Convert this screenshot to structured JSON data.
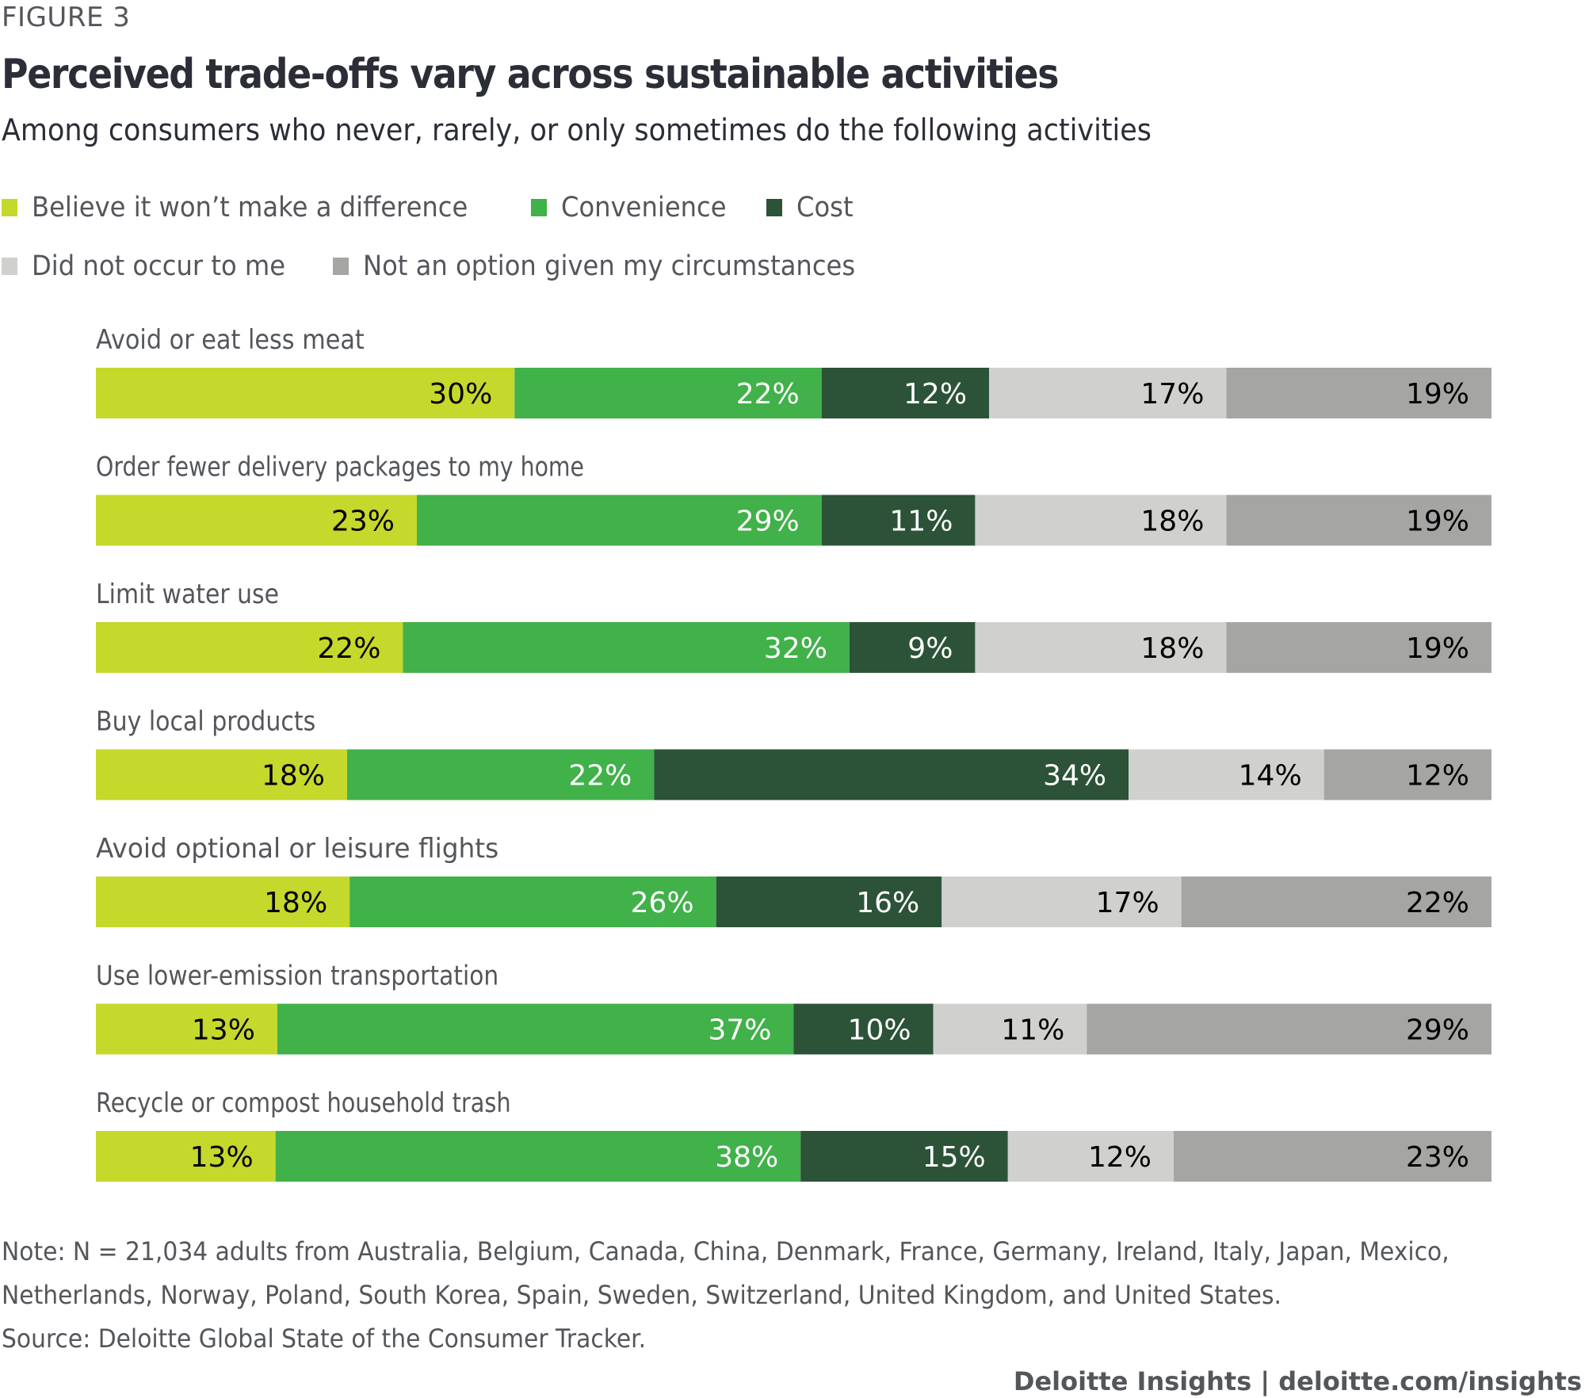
{
  "figure_label": "FIGURE 3",
  "title": "Perceived trade-offs vary across sustainable activities",
  "subtitle": "Among consumers who never, rarely, or only sometimes do the following activities",
  "legend": [
    {
      "label": "Believe it won’t make a difference",
      "color": "#c5d82c",
      "icon": "square-swatch"
    },
    {
      "label": "Convenience",
      "color": "#41b14a",
      "icon": "square-swatch"
    },
    {
      "label": "Cost",
      "color": "#2c5337",
      "icon": "square-swatch"
    },
    {
      "label": "Did not occur to me",
      "color": "#d0d0ce",
      "icon": "square-swatch"
    },
    {
      "label": "Not an option given my circumstances",
      "color": "#a5a5a4",
      "icon": "square-swatch"
    }
  ],
  "chart_data": {
    "type": "bar",
    "orientation": "horizontal",
    "stacked": true,
    "normalized": "percent",
    "title": "Perceived trade-offs vary across sustainable activities",
    "subtitle": "Among consumers who never, rarely, or only sometimes do the following activities",
    "xlabel": "",
    "ylabel": "",
    "xlim": [
      0,
      100
    ],
    "grid": false,
    "legend_position": "top-left",
    "categories": [
      "Avoid or eat less meat",
      "Order fewer delivery packages to my home",
      "Limit water use",
      "Buy local products",
      "Avoid optional or leisure flights",
      "Use lower-emission transportation",
      "Recycle or compost household trash"
    ],
    "series": [
      {
        "name": "Believe it won’t make a difference",
        "color": "#c5d82c",
        "label_color": "#000000",
        "values": [
          30,
          23,
          22,
          18,
          18,
          13,
          13
        ]
      },
      {
        "name": "Convenience",
        "color": "#41b14a",
        "label_color": "#ffffff",
        "values": [
          22,
          29,
          32,
          22,
          26,
          37,
          38
        ]
      },
      {
        "name": "Cost",
        "color": "#2c5337",
        "label_color": "#ffffff",
        "values": [
          12,
          11,
          9,
          34,
          16,
          10,
          15
        ]
      },
      {
        "name": "Did not occur to me",
        "color": "#d0d0ce",
        "label_color": "#000000",
        "values": [
          17,
          18,
          18,
          14,
          17,
          11,
          12
        ]
      },
      {
        "name": "Not an option given my circumstances",
        "color": "#a5a5a4",
        "label_color": "#000000",
        "values": [
          19,
          19,
          19,
          12,
          22,
          29,
          23
        ]
      }
    ],
    "value_suffix": "%"
  },
  "notes": {
    "note_line1": "Note: N = 21,034 adults from Australia, Belgium, Canada, China, Denmark, France, Germany, Ireland, Italy, Japan, Mexico,",
    "note_line2": "Netherlands, Norway, Poland, South Korea, Spain, Sweden, Switzerland, United Kingdom, and United States.",
    "source": "Source: Deloitte Global State of the Consumer Tracker."
  },
  "branding": "Deloitte Insights | deloitte.com/insights"
}
